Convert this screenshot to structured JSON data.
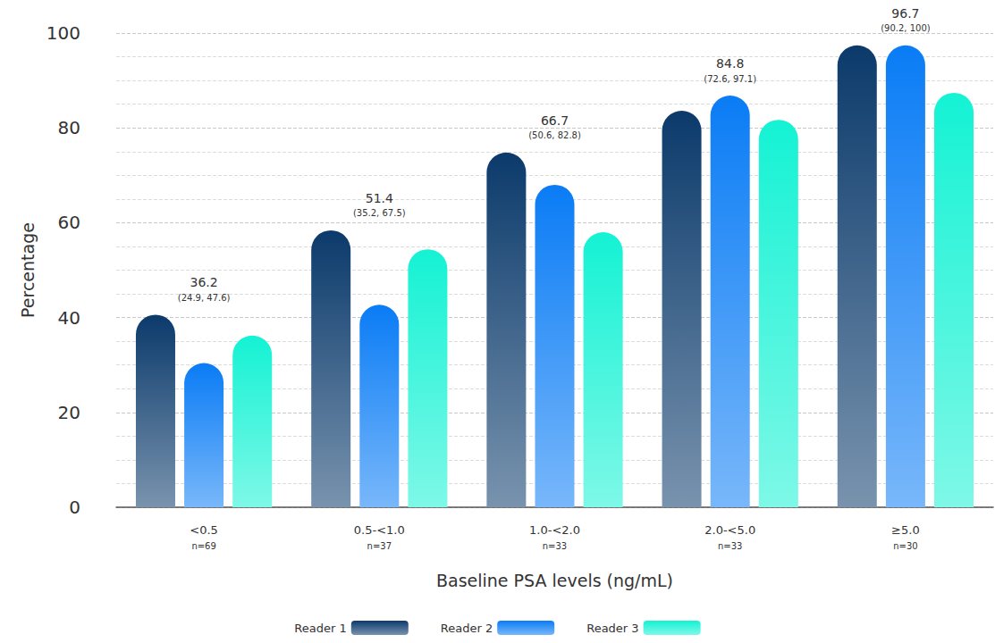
{
  "chart_data": {
    "type": "bar",
    "x_label": "Baseline PSA levels (ng/mL)",
    "y_label": "Percentage",
    "categories": [
      "<0.5",
      "0.5-<1.0",
      "1.0-<2.0",
      "2.0-<5.0",
      "≥5.0"
    ],
    "category_sublabels": [
      "n=69",
      "n=37",
      "n=33",
      "n=33",
      "n=30"
    ],
    "series": [
      {
        "name": "Reader 1",
        "color": "#0b3a6b",
        "values": [
          40.6,
          58.4,
          74.8,
          83.6,
          97.4
        ]
      },
      {
        "name": "Reader 2",
        "color": "#0a7cf5",
        "values": [
          30.4,
          42.7,
          68.0,
          86.8,
          97.4
        ]
      },
      {
        "name": "Reader 3",
        "color": "#14f2d4",
        "values": [
          36.2,
          54.4,
          58.0,
          81.7,
          87.4
        ]
      }
    ],
    "annotations": [
      {
        "value": 36.2,
        "ci": "(24.9, 47.6)"
      },
      {
        "value": 51.4,
        "ci": "(35.2, 67.5)"
      },
      {
        "value": 66.7,
        "ci": "(50.6, 82.8)"
      },
      {
        "value": 84.8,
        "ci": "(72.6, 97.1)"
      },
      {
        "value": 96.7,
        "ci": "(90.2, 100)"
      }
    ],
    "ylim": [
      0,
      100
    ],
    "yticks": [
      0,
      20,
      40,
      60,
      80,
      100
    ],
    "grid": true,
    "legend": "bottom"
  }
}
